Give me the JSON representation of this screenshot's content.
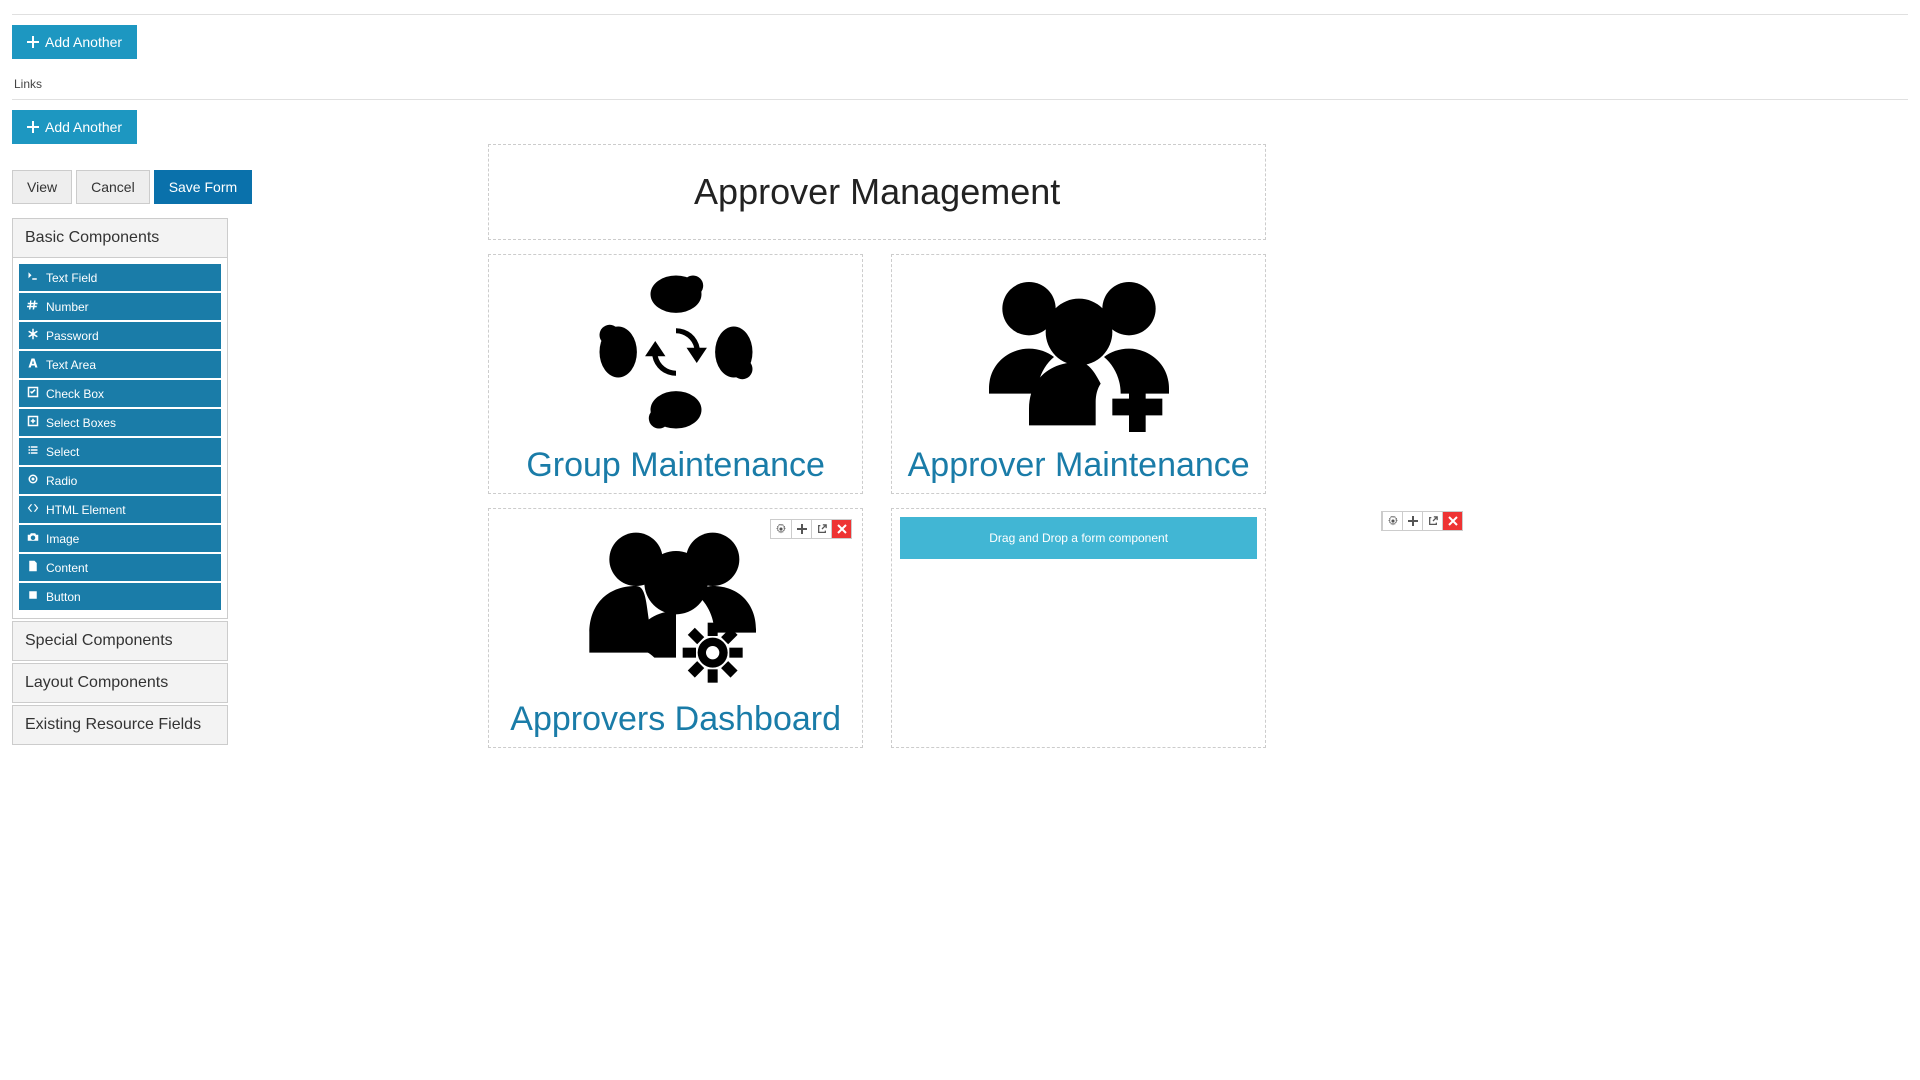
{
  "top_hr": true,
  "buttons": {
    "add_another": "Add Another",
    "view": "View",
    "cancel": "Cancel",
    "save_form": "Save Form"
  },
  "labels": {
    "links": "Links"
  },
  "sidebar": {
    "sections": [
      {
        "title": "Basic Components",
        "open": true
      },
      {
        "title": "Special Components",
        "open": false
      },
      {
        "title": "Layout Components",
        "open": false
      },
      {
        "title": "Existing Resource Fields",
        "open": false
      }
    ],
    "components": [
      {
        "icon": "terminal",
        "label": "Text Field"
      },
      {
        "icon": "hash",
        "label": "Number"
      },
      {
        "icon": "asterisk",
        "label": "Password"
      },
      {
        "icon": "font",
        "label": "Text Area"
      },
      {
        "icon": "check",
        "label": "Check Box"
      },
      {
        "icon": "plus-square",
        "label": "Select Boxes"
      },
      {
        "icon": "list",
        "label": "Select"
      },
      {
        "icon": "dot",
        "label": "Radio"
      },
      {
        "icon": "code",
        "label": "HTML Element"
      },
      {
        "icon": "camera",
        "label": "Image"
      },
      {
        "icon": "file",
        "label": "Content"
      },
      {
        "icon": "stop",
        "label": "Button"
      }
    ]
  },
  "form": {
    "title": "Approver Management",
    "tiles": [
      {
        "key": "group-maintenance",
        "label": "Group Maintenance",
        "icon": "sync-group"
      },
      {
        "key": "approver-maintenance",
        "label": "Approver Maintenance",
        "icon": "users-plus"
      },
      {
        "key": "approvers-dashboard",
        "label": "Approvers Dashboard",
        "icon": "users-cog",
        "show_tools": true
      }
    ],
    "drop_text": "Drag and Drop a form component"
  },
  "colors": {
    "info": "#1d97c1",
    "primary": "#0a71ab",
    "link": "#1a7ca8",
    "drop": "#41b6d4",
    "danger": "#e33"
  }
}
